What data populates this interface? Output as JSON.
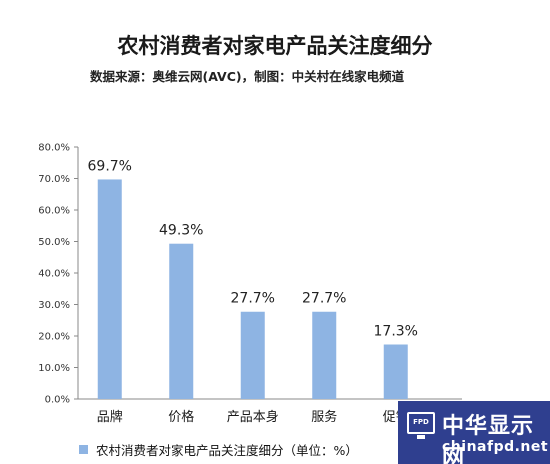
{
  "chart_data": {
    "type": "bar",
    "title": "农村消费者对家电产品关注度细分",
    "subtitle": "数据来源：奥维云网(AVC)，制图：中关村在线家电频道",
    "categories": [
      "品牌",
      "价格",
      "产品本身",
      "服务",
      "促销"
    ],
    "values": [
      69.7,
      49.3,
      27.7,
      27.7,
      17.3
    ],
    "data_labels": [
      "69.7%",
      "49.3%",
      "27.7%",
      "27.7%",
      "17.3%"
    ],
    "y_ticks": [
      "0.0%",
      "10.0%",
      "20.0%",
      "30.0%",
      "40.0%",
      "50.0%",
      "60.0%",
      "70.0%",
      "80.0%"
    ],
    "ylim": [
      0,
      80
    ],
    "grid": false,
    "legend_position": "bottom-left",
    "series": [
      {
        "name": "农村消费者对家电产品关注度细分（单位：%）",
        "color": "#8eb4e3"
      }
    ]
  },
  "watermark": {
    "icon": "monitor-icon",
    "icon_text": "FPD",
    "cn": "中华显示网",
    "en": "chinafpd.net",
    "color": "#2f3f8f"
  }
}
